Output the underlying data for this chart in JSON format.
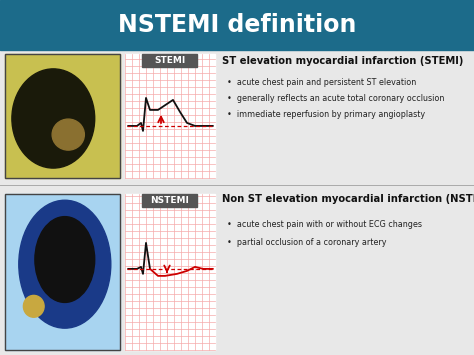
{
  "title": "NSTEMI definition",
  "title_color": "#ffffff",
  "title_bg_color": "#1c6b8a",
  "bg_color": "#e8e8e8",
  "section1_label": "STEMI",
  "section2_label": "NSTEMI",
  "stemi_title": "ST elevation myocardial infarction (STEMI)",
  "nstemi_title": "Non ST elevation myocardial infarction (NSTEMI)",
  "stemi_bullets": [
    "acute chest pain and persistent ST elevation",
    "generally reflects an acute total coronary occlusion",
    "immediate reperfusion by primary angioplasty"
  ],
  "nstemi_bullets": [
    "acute chest pain with or without ECG changes",
    "partial occlusion of a coronary artery"
  ],
  "label_bg_color": "#555555",
  "label_text_color": "#ffffff",
  "ecg_bg_color": "#ffffff",
  "ecg_grid_color": "#f5aaaa",
  "ecg_line_color": "#111111",
  "ecg_red_color": "#cc0000",
  "arrow_color": "#cc0000",
  "dotted_line_color": "#cc0000",
  "bullet_color": "#222222",
  "section_title_color": "#111111",
  "divider_color": "#aaaaaa",
  "img1_bg": "#c8c050",
  "img2_bg": "#a8d4f0"
}
